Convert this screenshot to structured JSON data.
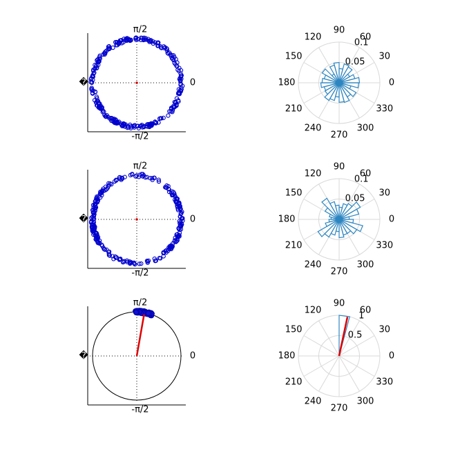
{
  "chart_data": [
    {
      "type": "scatter",
      "subtype": "circular-scatter",
      "tick_labels": {
        "top": "π/2",
        "bottom": "-π/2",
        "left": "�",
        "right": "0"
      },
      "n_points": 300,
      "distribution": "uniform",
      "radius_range": [
        0.96,
        1.04
      ],
      "resultant_length": 0.02
    },
    {
      "type": "polar-histogram",
      "angle_labels": [
        "0",
        "30",
        "60",
        "90",
        "120",
        "150",
        "180",
        "210",
        "240",
        "270",
        "300",
        "330"
      ],
      "radial_labels": [
        "0.05",
        "0.1"
      ],
      "rmax": 0.1,
      "bin_count": 24,
      "values": [
        0.05,
        0.04,
        0.03,
        0.045,
        0.048,
        0.035,
        0.05,
        0.045,
        0.025,
        0.048,
        0.038,
        0.042,
        0.045,
        0.038,
        0.04,
        0.05,
        0.045,
        0.035,
        0.048,
        0.05,
        0.04,
        0.048,
        0.03,
        0.048
      ]
    },
    {
      "type": "scatter",
      "subtype": "circular-scatter",
      "tick_labels": {
        "top": "π/2",
        "bottom": "-π/2",
        "left": "�",
        "right": "0"
      },
      "n_points": 300,
      "distribution": "bimodal",
      "radius_range": [
        0.96,
        1.04
      ],
      "resultant_length": 0.02
    },
    {
      "type": "polar-histogram",
      "angle_labels": [
        "0",
        "30",
        "60",
        "90",
        "120",
        "150",
        "180",
        "210",
        "240",
        "270",
        "300",
        "330"
      ],
      "radial_labels": [
        "0.05",
        "0.1"
      ],
      "rmax": 0.1,
      "bin_count": 24,
      "values": [
        0.025,
        0.05,
        0.06,
        0.045,
        0.04,
        0.03,
        0.035,
        0.045,
        0.06,
        0.04,
        0.025,
        0.02,
        0.025,
        0.035,
        0.06,
        0.05,
        0.04,
        0.03,
        0.045,
        0.04,
        0.04,
        0.05,
        0.06,
        0.035
      ]
    },
    {
      "type": "scatter",
      "subtype": "circular-scatter",
      "tick_labels": {
        "top": "π/2",
        "bottom": "-π/2",
        "left": "�",
        "right": "0"
      },
      "n_points": 60,
      "distribution": "concentrated",
      "mean_angle_deg": 80,
      "cluster_span_deg": [
        70,
        92
      ],
      "resultant_length": 0.96
    },
    {
      "type": "polar-histogram",
      "angle_labels": [
        "0",
        "30",
        "60",
        "90",
        "120",
        "150",
        "180",
        "210",
        "240",
        "270",
        "300",
        "330"
      ],
      "radial_labels": [
        "0.5",
        "1"
      ],
      "rmax": 1.0,
      "bins": [
        {
          "from_deg": 75,
          "to_deg": 90,
          "value": 1.0
        }
      ],
      "mean_angle_deg": 78,
      "resultant_length": 0.98
    }
  ]
}
